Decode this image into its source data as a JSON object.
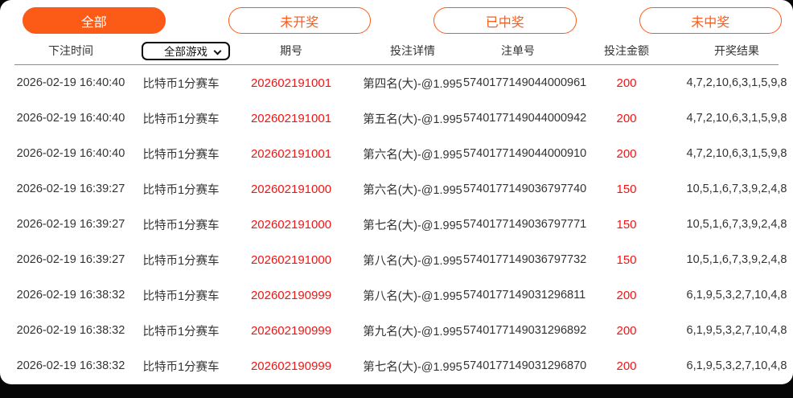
{
  "colors": {
    "accent": "#fb5a17",
    "red": "#f31414"
  },
  "filters": [
    {
      "label": "全部",
      "active": true
    },
    {
      "label": "未开奖",
      "active": false
    },
    {
      "label": "已中奖",
      "active": false
    },
    {
      "label": "未中奖",
      "active": false
    }
  ],
  "table": {
    "columns": {
      "bet_time": "下注时间",
      "game_filter_selected": "全部游戏",
      "period": "期号",
      "bet_detail": "投注详情",
      "order_no": "注单号",
      "bet_amount": "投注金额",
      "draw_result": "开奖结果"
    },
    "rows": [
      {
        "time": "2026-02-19 16:40:40",
        "game": "比特币1分赛车",
        "period": "202602191001",
        "detail": "第四名(大)-@1.995",
        "order": "5740177149044000961",
        "amount": "200",
        "result": "4,7,2,10,6,3,1,5,9,8"
      },
      {
        "time": "2026-02-19 16:40:40",
        "game": "比特币1分赛车",
        "period": "202602191001",
        "detail": "第五名(大)-@1.995",
        "order": "5740177149044000942",
        "amount": "200",
        "result": "4,7,2,10,6,3,1,5,9,8"
      },
      {
        "time": "2026-02-19 16:40:40",
        "game": "比特币1分赛车",
        "period": "202602191001",
        "detail": "第六名(大)-@1.995",
        "order": "5740177149044000910",
        "amount": "200",
        "result": "4,7,2,10,6,3,1,5,9,8"
      },
      {
        "time": "2026-02-19 16:39:27",
        "game": "比特币1分赛车",
        "period": "202602191000",
        "detail": "第六名(大)-@1.995",
        "order": "5740177149036797740",
        "amount": "150",
        "result": "10,5,1,6,7,3,9,2,4,8"
      },
      {
        "time": "2026-02-19 16:39:27",
        "game": "比特币1分赛车",
        "period": "202602191000",
        "detail": "第七名(大)-@1.995",
        "order": "5740177149036797771",
        "amount": "150",
        "result": "10,5,1,6,7,3,9,2,4,8"
      },
      {
        "time": "2026-02-19 16:39:27",
        "game": "比特币1分赛车",
        "period": "202602191000",
        "detail": "第八名(大)-@1.995",
        "order": "5740177149036797732",
        "amount": "150",
        "result": "10,5,1,6,7,3,9,2,4,8"
      },
      {
        "time": "2026-02-19 16:38:32",
        "game": "比特币1分赛车",
        "period": "202602190999",
        "detail": "第八名(大)-@1.995",
        "order": "5740177149031296811",
        "amount": "200",
        "result": "6,1,9,5,3,2,7,10,4,8"
      },
      {
        "time": "2026-02-19 16:38:32",
        "game": "比特币1分赛车",
        "period": "202602190999",
        "detail": "第九名(大)-@1.995",
        "order": "5740177149031296892",
        "amount": "200",
        "result": "6,1,9,5,3,2,7,10,4,8"
      },
      {
        "time": "2026-02-19 16:38:32",
        "game": "比特币1分赛车",
        "period": "202602190999",
        "detail": "第七名(大)-@1.995",
        "order": "5740177149031296870",
        "amount": "200",
        "result": "6,1,9,5,3,2,7,10,4,8"
      }
    ]
  }
}
